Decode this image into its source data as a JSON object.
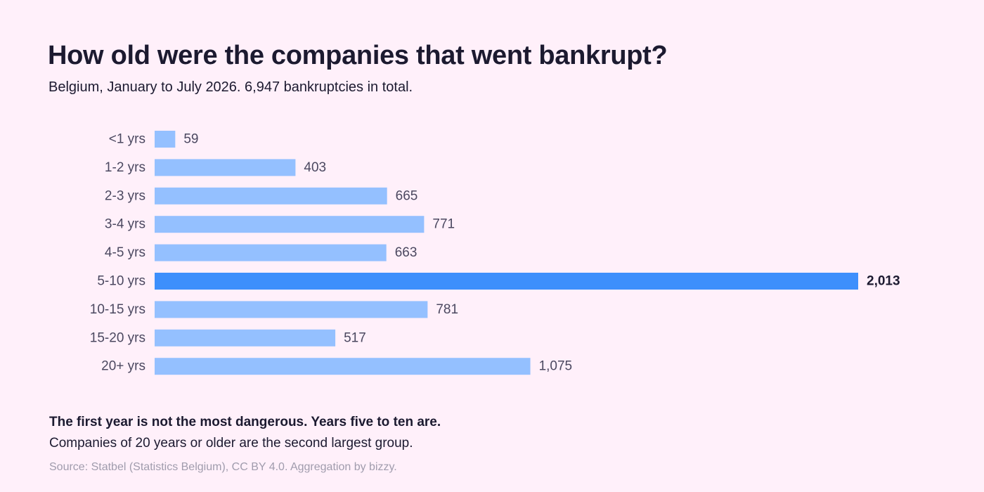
{
  "chart_data": {
    "type": "bar",
    "orientation": "horizontal",
    "title": "How old were the companies that went bankrupt?",
    "subtitle": "Belgium, January to July 2026. 6,947 bankruptcies in total.",
    "categories": [
      "<1 yrs",
      "1-2 yrs",
      "2-3 yrs",
      "3-4 yrs",
      "4-5 yrs",
      "5-10 yrs",
      "10-15 yrs",
      "15-20 yrs",
      "20+ yrs"
    ],
    "values": [
      59,
      403,
      665,
      771,
      663,
      2013,
      781,
      517,
      1075
    ],
    "value_labels": [
      "59",
      "403",
      "665",
      "771",
      "663",
      "2,013",
      "781",
      "517",
      "1,075"
    ],
    "highlight_category": "5-10 yrs",
    "xlim": [
      0,
      2013
    ],
    "grid": false,
    "legend": "none",
    "colors": {
      "bar": "#94c0ff",
      "highlight": "#3d8ffc"
    }
  },
  "notes": {
    "headline": "The first year is not the most dangerous. Years five to ten are.",
    "detail": "Companies of 20 years or older are the second largest group."
  },
  "source": "Source: Statbel (Statistics Belgium), CC BY 4.0. Aggregation by bizzy."
}
